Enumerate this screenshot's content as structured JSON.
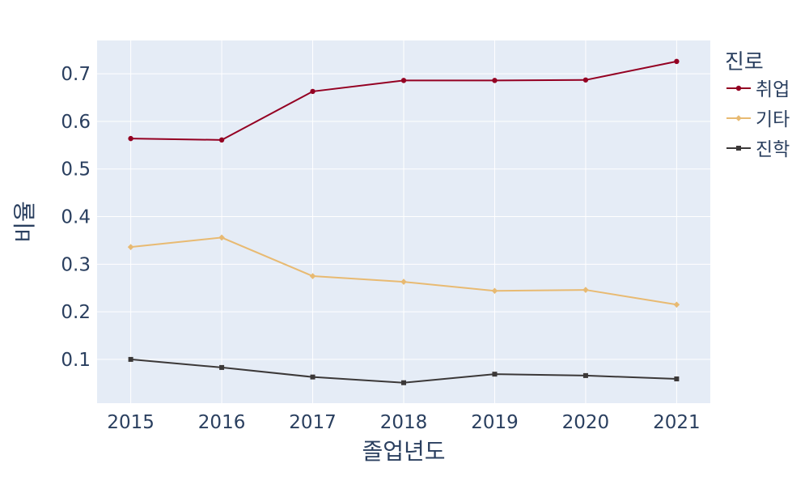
{
  "chart_data": {
    "type": "line",
    "xlabel": "졸업년도",
    "ylabel": "비율",
    "x": [
      2015,
      2016,
      2017,
      2018,
      2019,
      2020,
      2021
    ],
    "x_ticks": [
      "2015",
      "2016",
      "2017",
      "2018",
      "2019",
      "2020",
      "2021"
    ],
    "y_ticks": [
      "0.1",
      "0.2",
      "0.3",
      "0.4",
      "0.5",
      "0.6",
      "0.7"
    ],
    "xlim": [
      2014.63,
      2021.37
    ],
    "ylim": [
      0.008,
      0.77
    ],
    "grid": true,
    "legend": {
      "title": "진로",
      "placement": "right"
    },
    "plot_background": "#e5ecf6",
    "series": [
      {
        "name": "취업",
        "color": "#940022",
        "marker": "circle",
        "values": [
          0.564,
          0.561,
          0.663,
          0.686,
          0.686,
          0.687,
          0.726
        ]
      },
      {
        "name": "기타",
        "color": "#e8ba72",
        "marker": "diamond",
        "values": [
          0.336,
          0.356,
          0.275,
          0.263,
          0.244,
          0.246,
          0.215
        ]
      },
      {
        "name": "진학",
        "color": "#3b3838",
        "marker": "square",
        "values": [
          0.1,
          0.083,
          0.063,
          0.051,
          0.069,
          0.066,
          0.059
        ]
      }
    ]
  }
}
